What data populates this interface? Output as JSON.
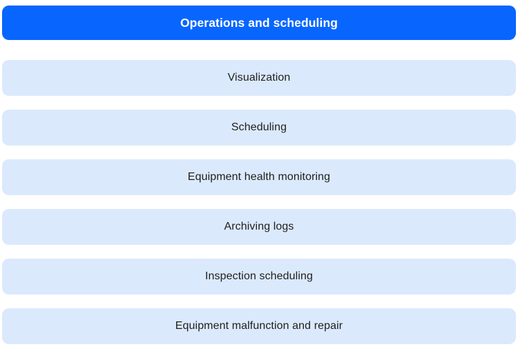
{
  "colors": {
    "header_bg": "#0866fe",
    "header_text": "#ffffff",
    "item_bg": "#dbe9fc",
    "item_text": "#1e1e1e",
    "page_bg": "#ffffff"
  },
  "header": {
    "label": "Operations and scheduling"
  },
  "items": [
    {
      "label": "Visualization"
    },
    {
      "label": "Scheduling"
    },
    {
      "label": "Equipment health monitoring"
    },
    {
      "label": "Archiving logs"
    },
    {
      "label": "Inspection scheduling"
    },
    {
      "label": "Equipment malfunction and repair"
    }
  ]
}
